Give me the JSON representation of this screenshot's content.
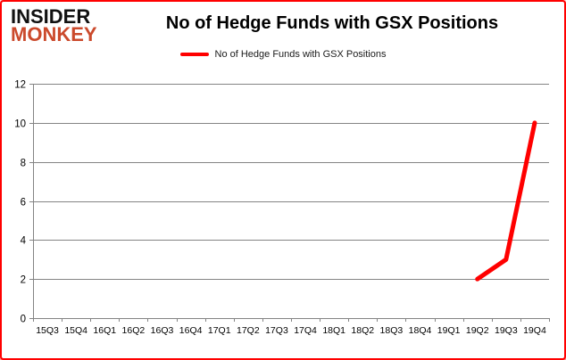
{
  "logo": {
    "line1": "INSIDER",
    "line2": "MONKEY",
    "accent_color": "#cb4a2c",
    "text_color": "#111111"
  },
  "header": {
    "title": "No of Hedge Funds with GSX Positions"
  },
  "legend": {
    "label": "No of Hedge Funds with GSX Positions",
    "swatch_color": "#ff0000"
  },
  "colors": {
    "line": "#ff0000",
    "grid": "#848484",
    "axis_text": "#000000",
    "border_glow": "#ff0000",
    "background": "#ffffff"
  },
  "chart_data": {
    "type": "line",
    "title": "No of Hedge Funds with GSX Positions",
    "categories": [
      "15Q3",
      "15Q4",
      "16Q1",
      "16Q2",
      "16Q3",
      "16Q4",
      "17Q1",
      "17Q2",
      "17Q3",
      "17Q4",
      "18Q1",
      "18Q2",
      "18Q3",
      "18Q4",
      "19Q1",
      "19Q2",
      "19Q3",
      "19Q4"
    ],
    "series": [
      {
        "name": "No of Hedge Funds with GSX Positions",
        "color": "#ff0000",
        "values": [
          null,
          null,
          null,
          null,
          null,
          null,
          null,
          null,
          null,
          null,
          null,
          null,
          null,
          null,
          null,
          2,
          3,
          10
        ]
      }
    ],
    "xlabel": "",
    "ylabel": "",
    "ylim": [
      0,
      12
    ],
    "yticks": [
      0,
      2,
      4,
      6,
      8,
      10,
      12
    ],
    "grid": true,
    "legend_position": "top"
  }
}
